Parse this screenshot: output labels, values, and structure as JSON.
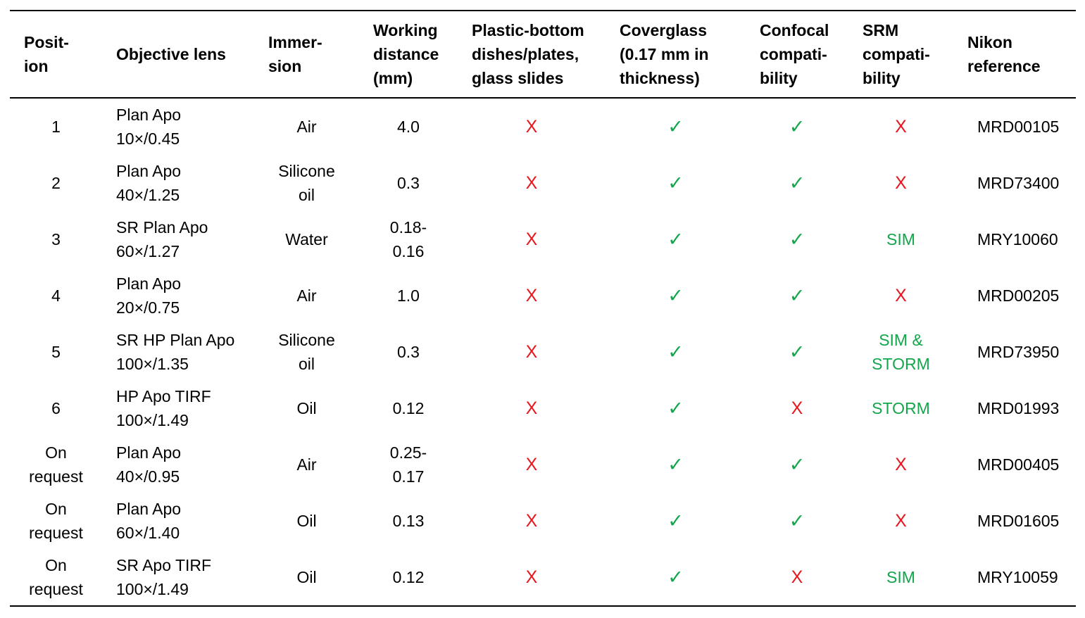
{
  "colors": {
    "cross": "#e8161c",
    "check": "#13a64a",
    "srm_text": "#13a64a",
    "rule": "#000000"
  },
  "table": {
    "headers": [
      "Posit-\nion",
      "Objective lens",
      "Immer-\nsion",
      "Working\ndistance\n(mm)",
      "Plastic-bottom\ndishes/plates,\nglass slides",
      "Coverglass\n(0.17 mm in\nthickness)",
      "Confocal\ncompati-\nbility",
      "SRM\ncompati-\nbility",
      "Nikon\nreference"
    ],
    "rows": [
      {
        "position": "1",
        "objective": "Plan Apo\n10×/0.45",
        "immersion": "Air",
        "wd": "4.0",
        "plastic": "X",
        "coverglass": "✓",
        "confocal": "✓",
        "srm": "X",
        "reference": "MRD00105"
      },
      {
        "position": "2",
        "objective": "Plan Apo\n40×/1.25",
        "immersion": "Silicone\noil",
        "wd": "0.3",
        "plastic": "X",
        "coverglass": "✓",
        "confocal": "✓",
        "srm": "X",
        "reference": "MRD73400"
      },
      {
        "position": "3",
        "objective": "SR Plan Apo\n60×/1.27",
        "immersion": "Water",
        "wd": "0.18-\n0.16",
        "plastic": "X",
        "coverglass": "✓",
        "confocal": "✓",
        "srm": "SIM",
        "reference": "MRY10060"
      },
      {
        "position": "4",
        "objective": "Plan Apo\n20×/0.75",
        "immersion": "Air",
        "wd": "1.0",
        "plastic": "X",
        "coverglass": "✓",
        "confocal": "✓",
        "srm": "X",
        "reference": "MRD00205"
      },
      {
        "position": "5",
        "objective": "SR HP Plan Apo\n100×/1.35",
        "immersion": "Silicone\noil",
        "wd": "0.3",
        "plastic": "X",
        "coverglass": "✓",
        "confocal": "✓",
        "srm": "SIM &\nSTORM",
        "reference": "MRD73950"
      },
      {
        "position": "6",
        "objective": "HP Apo TIRF\n100×/1.49",
        "immersion": "Oil",
        "wd": "0.12",
        "plastic": "X",
        "coverglass": "✓",
        "confocal": "X",
        "srm": "STORM",
        "reference": "MRD01993"
      },
      {
        "position": "On\nrequest",
        "objective": "Plan Apo\n40×/0.95",
        "immersion": "Air",
        "wd": "0.25-\n0.17",
        "plastic": "X",
        "coverglass": "✓",
        "confocal": "✓",
        "srm": "X",
        "reference": "MRD00405"
      },
      {
        "position": "On\nrequest",
        "objective": "Plan Apo\n60×/1.40",
        "immersion": "Oil",
        "wd": "0.13",
        "plastic": "X",
        "coverglass": "✓",
        "confocal": "✓",
        "srm": "X",
        "reference": "MRD01605"
      },
      {
        "position": "On\nrequest",
        "objective": "SR Apo TIRF\n100×/1.49",
        "immersion": "Oil",
        "wd": "0.12",
        "plastic": "X",
        "coverglass": "✓",
        "confocal": "X",
        "srm": "SIM",
        "reference": "MRY10059"
      }
    ]
  }
}
